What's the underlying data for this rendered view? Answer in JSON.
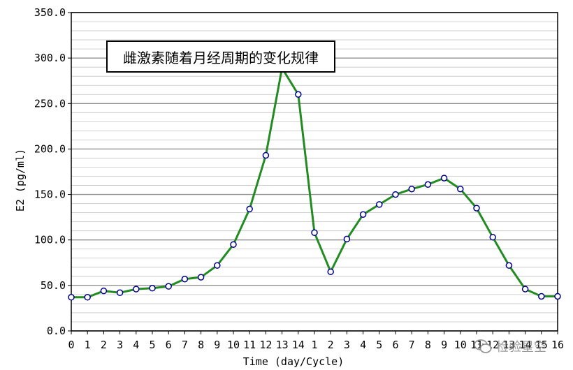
{
  "chart_data": {
    "type": "line",
    "title": "雌激素随着月经周期的变化规律",
    "xlabel": "Time (day/Cycle)",
    "ylabel": "E2 (pg/ml)",
    "ylim": [
      0,
      350
    ],
    "yticks": [
      "0.0",
      "50.0",
      "100.0",
      "150.0",
      "200.0",
      "250.0",
      "300.0",
      "350.0"
    ],
    "categories": [
      "0",
      "1",
      "2",
      "3",
      "4",
      "5",
      "6",
      "7",
      "8",
      "9",
      "10",
      "11",
      "12",
      "13",
      "14",
      "1",
      "2",
      "3",
      "4",
      "5",
      "6",
      "7",
      "8",
      "9",
      "10",
      "11",
      "12",
      "13",
      "14",
      "15",
      "16"
    ],
    "series": [
      {
        "values": [
          37,
          37,
          44,
          42,
          46,
          47,
          49,
          57,
          59,
          72,
          95,
          134,
          193,
          289,
          260,
          108,
          65,
          101,
          128,
          139,
          150,
          156,
          161,
          168,
          156,
          135,
          103,
          72,
          46,
          38,
          38
        ]
      }
    ],
    "colors": {
      "line": "#228B22",
      "marker_fill": "#ffffff",
      "marker_stroke": "#00008b",
      "plot_bg": "#ffffff",
      "grid": "#a0a0a0"
    },
    "grid": true,
    "legend": "none"
  },
  "watermark": {
    "text": "检验星空",
    "icon": "wechat-icon"
  }
}
